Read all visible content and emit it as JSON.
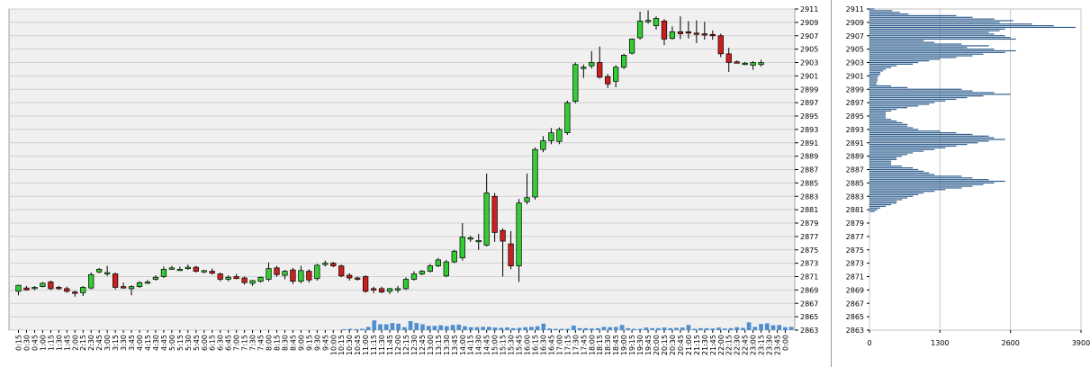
{
  "chart_data": [
    {
      "type": "candlestick",
      "title": "",
      "ylim": [
        2863,
        2911
      ],
      "y_ticks": [
        "2911",
        "2909",
        "2907",
        "2905",
        "2903",
        "2901",
        "2899",
        "2897",
        "2895",
        "2893",
        "2891",
        "2889",
        "2887",
        "2885",
        "2883",
        "2881",
        "2879",
        "2877",
        "2875",
        "2873",
        "2871",
        "2869",
        "2867",
        "2865",
        "2863"
      ],
      "x_tick_labels": [
        "0:15",
        "0:30",
        "0:45",
        "1:00",
        "1:15",
        "1:30",
        "1:45",
        "2:00",
        "2:15",
        "2:30",
        "2:45",
        "3:00",
        "3:15",
        "3:30",
        "3:45",
        "4:00",
        "4:15",
        "4:30",
        "4:45",
        "5:00",
        "5:15",
        "5:30",
        "5:45",
        "6:00",
        "6:15",
        "6:30",
        "6:45",
        "7:00",
        "7:15",
        "7:30",
        "7:45",
        "8:00",
        "8:15",
        "8:30",
        "8:45",
        "9:00",
        "9:15",
        "9:30",
        "9:45",
        "10:00",
        "10:15",
        "10:30",
        "10:45",
        "11:00",
        "11:15",
        "11:30",
        "11:45",
        "12:00",
        "12:15",
        "12:30",
        "12:45",
        "13:00",
        "13:15",
        "13:30",
        "13:45",
        "14:00",
        "14:15",
        "14:30",
        "14:45",
        "15:00",
        "15:15",
        "15:30",
        "15:45",
        "16:00",
        "16:15",
        "16:30",
        "16:45",
        "17:00",
        "17:15",
        "17:30",
        "17:45",
        "18:00",
        "18:15",
        "18:30",
        "18:45",
        "19:00",
        "19:15",
        "19:30",
        "19:45",
        "20:00",
        "20:15",
        "20:30",
        "20:45",
        "21:00",
        "21:15",
        "21:30",
        "21:45",
        "22:00",
        "22:15",
        "22:30",
        "22:45",
        "23:00",
        "23:15",
        "23:30",
        "23:45",
        "0:00"
      ],
      "colors": {
        "up": "#33cc33",
        "down": "#cc1f1f",
        "volume": "#4f8fcf",
        "grid": "#d0d0d0",
        "plot_bg": "#f0f0f0"
      },
      "candles": [
        {
          "t": "0:15",
          "o": 2868.8,
          "h": 2869.8,
          "l": 2868.2,
          "c": 2869.7
        },
        {
          "t": "0:30",
          "o": 2869.3,
          "h": 2869.6,
          "l": 2868.9,
          "c": 2869.0
        },
        {
          "t": "0:45",
          "o": 2869.2,
          "h": 2869.6,
          "l": 2869.0,
          "c": 2869.4
        },
        {
          "t": "1:00",
          "o": 2869.5,
          "h": 2870.2,
          "l": 2869.4,
          "c": 2870.0
        },
        {
          "t": "1:15",
          "o": 2870.2,
          "h": 2870.4,
          "l": 2869.0,
          "c": 2869.2
        },
        {
          "t": "1:30",
          "o": 2869.4,
          "h": 2869.6,
          "l": 2869.0,
          "c": 2869.3
        },
        {
          "t": "1:45",
          "o": 2869.2,
          "h": 2869.5,
          "l": 2868.6,
          "c": 2868.8
        },
        {
          "t": "2:00",
          "o": 2868.7,
          "h": 2868.9,
          "l": 2868.0,
          "c": 2868.6
        },
        {
          "t": "2:15",
          "o": 2868.6,
          "h": 2869.6,
          "l": 2868.1,
          "c": 2869.4
        },
        {
          "t": "2:30",
          "o": 2869.3,
          "h": 2871.6,
          "l": 2869.1,
          "c": 2871.3
        },
        {
          "t": "2:45",
          "o": 2871.7,
          "h": 2872.3,
          "l": 2871.5,
          "c": 2872.1
        },
        {
          "t": "3:00",
          "o": 2871.4,
          "h": 2872.6,
          "l": 2871.1,
          "c": 2871.6
        },
        {
          "t": "3:15",
          "o": 2871.4,
          "h": 2871.6,
          "l": 2869.1,
          "c": 2869.4
        },
        {
          "t": "3:30",
          "o": 2869.5,
          "h": 2870.1,
          "l": 2869.2,
          "c": 2869.3
        },
        {
          "t": "3:45",
          "o": 2869.2,
          "h": 2869.7,
          "l": 2868.2,
          "c": 2869.5
        },
        {
          "t": "4:00",
          "o": 2869.5,
          "h": 2870.3,
          "l": 2869.3,
          "c": 2870.1
        },
        {
          "t": "4:15",
          "o": 2870.1,
          "h": 2870.5,
          "l": 2869.9,
          "c": 2870.2
        },
        {
          "t": "4:30",
          "o": 2870.6,
          "h": 2871.2,
          "l": 2870.4,
          "c": 2870.9
        },
        {
          "t": "4:45",
          "o": 2871.0,
          "h": 2872.5,
          "l": 2870.8,
          "c": 2872.1
        },
        {
          "t": "5:00",
          "o": 2872.2,
          "h": 2872.6,
          "l": 2872.0,
          "c": 2872.3
        },
        {
          "t": "5:15",
          "o": 2872.1,
          "h": 2872.5,
          "l": 2871.9,
          "c": 2872.1
        },
        {
          "t": "5:30",
          "o": 2872.2,
          "h": 2872.8,
          "l": 2872.0,
          "c": 2872.4
        },
        {
          "t": "5:45",
          "o": 2872.4,
          "h": 2872.6,
          "l": 2871.6,
          "c": 2871.8
        },
        {
          "t": "6:00",
          "o": 2871.8,
          "h": 2872.0,
          "l": 2871.5,
          "c": 2871.9
        },
        {
          "t": "6:15",
          "o": 2871.8,
          "h": 2872.2,
          "l": 2871.3,
          "c": 2871.5
        },
        {
          "t": "6:30",
          "o": 2871.4,
          "h": 2871.6,
          "l": 2870.3,
          "c": 2870.6
        },
        {
          "t": "6:45",
          "o": 2870.6,
          "h": 2871.2,
          "l": 2870.3,
          "c": 2870.9
        },
        {
          "t": "7:00",
          "o": 2871.0,
          "h": 2871.4,
          "l": 2870.6,
          "c": 2870.7
        },
        {
          "t": "7:15",
          "o": 2870.8,
          "h": 2871.0,
          "l": 2869.8,
          "c": 2870.1
        },
        {
          "t": "7:30",
          "o": 2870.0,
          "h": 2870.5,
          "l": 2869.6,
          "c": 2870.4
        },
        {
          "t": "7:45",
          "o": 2870.3,
          "h": 2871.0,
          "l": 2870.1,
          "c": 2870.9
        },
        {
          "t": "8:00",
          "o": 2870.6,
          "h": 2873.1,
          "l": 2870.3,
          "c": 2872.2
        },
        {
          "t": "8:15",
          "o": 2872.3,
          "h": 2872.6,
          "l": 2871.0,
          "c": 2871.3
        },
        {
          "t": "8:30",
          "o": 2871.2,
          "h": 2872.0,
          "l": 2870.6,
          "c": 2871.8
        },
        {
          "t": "8:45",
          "o": 2872.0,
          "h": 2872.3,
          "l": 2869.9,
          "c": 2870.3
        },
        {
          "t": "9:00",
          "o": 2870.3,
          "h": 2872.6,
          "l": 2870.0,
          "c": 2871.9
        },
        {
          "t": "9:15",
          "o": 2871.8,
          "h": 2872.1,
          "l": 2870.1,
          "c": 2870.5
        },
        {
          "t": "9:30",
          "o": 2870.7,
          "h": 2872.9,
          "l": 2870.4,
          "c": 2872.7
        },
        {
          "t": "9:45",
          "o": 2872.8,
          "h": 2873.4,
          "l": 2872.5,
          "c": 2873.0
        },
        {
          "t": "10:00",
          "o": 2873.0,
          "h": 2873.2,
          "l": 2872.4,
          "c": 2872.6
        },
        {
          "t": "10:15",
          "o": 2872.6,
          "h": 2872.8,
          "l": 2870.9,
          "c": 2871.1
        },
        {
          "t": "10:30",
          "o": 2871.2,
          "h": 2871.5,
          "l": 2870.4,
          "c": 2870.8
        },
        {
          "t": "10:45",
          "o": 2870.8,
          "h": 2871.0,
          "l": 2870.4,
          "c": 2870.6
        },
        {
          "t": "11:00",
          "o": 2871.0,
          "h": 2871.2,
          "l": 2868.6,
          "c": 2868.8
        },
        {
          "t": "11:15",
          "o": 2869.2,
          "h": 2869.5,
          "l": 2868.5,
          "c": 2869.0
        },
        {
          "t": "11:30",
          "o": 2869.2,
          "h": 2869.5,
          "l": 2868.5,
          "c": 2868.7
        },
        {
          "t": "11:45",
          "o": 2868.8,
          "h": 2869.3,
          "l": 2868.4,
          "c": 2869.2
        },
        {
          "t": "12:00",
          "o": 2869.0,
          "h": 2869.6,
          "l": 2868.6,
          "c": 2869.2
        },
        {
          "t": "12:15",
          "o": 2869.2,
          "h": 2870.9,
          "l": 2869.0,
          "c": 2870.6
        },
        {
          "t": "12:30",
          "o": 2870.6,
          "h": 2871.8,
          "l": 2870.4,
          "c": 2871.4
        },
        {
          "t": "12:45",
          "o": 2871.4,
          "h": 2872.0,
          "l": 2871.2,
          "c": 2871.8
        },
        {
          "t": "13:00",
          "o": 2871.8,
          "h": 2872.9,
          "l": 2871.6,
          "c": 2872.6
        },
        {
          "t": "13:15",
          "o": 2872.6,
          "h": 2873.8,
          "l": 2872.4,
          "c": 2873.5
        },
        {
          "t": "13:30",
          "o": 2871.1,
          "h": 2873.5,
          "l": 2870.9,
          "c": 2873.2
        },
        {
          "t": "13:45",
          "o": 2873.2,
          "h": 2875.0,
          "l": 2873.0,
          "c": 2874.8
        },
        {
          "t": "14:00",
          "o": 2873.8,
          "h": 2879.0,
          "l": 2873.4,
          "c": 2876.9
        },
        {
          "t": "14:15",
          "o": 2876.6,
          "h": 2877.1,
          "l": 2876.2,
          "c": 2876.8
        },
        {
          "t": "14:30",
          "o": 2876.4,
          "h": 2877.4,
          "l": 2875.0,
          "c": 2876.4
        },
        {
          "t": "14:45",
          "o": 2875.7,
          "h": 2886.4,
          "l": 2875.5,
          "c": 2883.5
        },
        {
          "t": "15:00",
          "o": 2883.0,
          "h": 2883.5,
          "l": 2876.2,
          "c": 2877.6
        },
        {
          "t": "15:15",
          "o": 2877.9,
          "h": 2878.2,
          "l": 2871.0,
          "c": 2876.3
        },
        {
          "t": "15:30",
          "o": 2875.9,
          "h": 2877.8,
          "l": 2872.1,
          "c": 2872.6
        },
        {
          "t": "15:45",
          "o": 2872.6,
          "h": 2882.6,
          "l": 2870.2,
          "c": 2882.0
        },
        {
          "t": "16:00",
          "o": 2882.2,
          "h": 2886.4,
          "l": 2881.8,
          "c": 2882.8
        },
        {
          "t": "16:15",
          "o": 2882.9,
          "h": 2890.3,
          "l": 2882.5,
          "c": 2890.0
        },
        {
          "t": "16:30",
          "o": 2890.0,
          "h": 2892.0,
          "l": 2889.6,
          "c": 2891.3
        },
        {
          "t": "16:45",
          "o": 2891.3,
          "h": 2893.2,
          "l": 2890.8,
          "c": 2892.5
        },
        {
          "t": "17:00",
          "o": 2891.2,
          "h": 2893.3,
          "l": 2890.8,
          "c": 2893.0
        },
        {
          "t": "17:15",
          "o": 2892.5,
          "h": 2897.3,
          "l": 2892.2,
          "c": 2897.0
        },
        {
          "t": "17:30",
          "o": 2897.2,
          "h": 2903.0,
          "l": 2896.9,
          "c": 2902.7
        },
        {
          "t": "17:45",
          "o": 2902.3,
          "h": 2902.7,
          "l": 2900.7,
          "c": 2902.3
        },
        {
          "t": "18:00",
          "o": 2902.5,
          "h": 2904.7,
          "l": 2902.1,
          "c": 2903.0
        },
        {
          "t": "18:15",
          "o": 2903.0,
          "h": 2905.4,
          "l": 2900.6,
          "c": 2900.8
        },
        {
          "t": "18:30",
          "o": 2900.9,
          "h": 2901.3,
          "l": 2899.2,
          "c": 2899.8
        },
        {
          "t": "18:45",
          "o": 2900.2,
          "h": 2902.6,
          "l": 2899.3,
          "c": 2902.3
        },
        {
          "t": "19:00",
          "o": 2902.3,
          "h": 2904.3,
          "l": 2902.0,
          "c": 2904.1
        },
        {
          "t": "19:15",
          "o": 2904.4,
          "h": 2906.6,
          "l": 2904.2,
          "c": 2906.5
        },
        {
          "t": "19:30",
          "o": 2906.7,
          "h": 2910.6,
          "l": 2906.4,
          "c": 2909.2
        },
        {
          "t": "19:45",
          "o": 2909.2,
          "h": 2910.8,
          "l": 2908.8,
          "c": 2909.3
        },
        {
          "t": "20:00",
          "o": 2908.5,
          "h": 2909.9,
          "l": 2907.9,
          "c": 2909.6
        },
        {
          "t": "20:15",
          "o": 2909.2,
          "h": 2909.5,
          "l": 2905.6,
          "c": 2906.5
        },
        {
          "t": "20:30",
          "o": 2906.6,
          "h": 2908.4,
          "l": 2906.4,
          "c": 2907.6
        },
        {
          "t": "20:45",
          "o": 2907.6,
          "h": 2909.9,
          "l": 2906.5,
          "c": 2907.3
        },
        {
          "t": "21:00",
          "o": 2907.6,
          "h": 2909.2,
          "l": 2906.6,
          "c": 2907.5
        },
        {
          "t": "21:15",
          "o": 2907.4,
          "h": 2909.3,
          "l": 2905.9,
          "c": 2907.3
        },
        {
          "t": "21:30",
          "o": 2907.3,
          "h": 2909.1,
          "l": 2906.4,
          "c": 2907.1
        },
        {
          "t": "21:45",
          "o": 2907.2,
          "h": 2907.8,
          "l": 2906.4,
          "c": 2907.0
        },
        {
          "t": "22:00",
          "o": 2907.0,
          "h": 2907.3,
          "l": 2903.8,
          "c": 2904.3
        },
        {
          "t": "22:15",
          "o": 2904.3,
          "h": 2905.2,
          "l": 2901.6,
          "c": 2903.0
        },
        {
          "t": "22:30",
          "o": 2903.1,
          "h": 2903.3,
          "l": 2902.9,
          "c": 2903.0
        },
        {
          "t": "22:45",
          "o": 2902.8,
          "h": 2903.1,
          "l": 2902.6,
          "c": 2902.9
        },
        {
          "t": "23:00",
          "o": 2902.6,
          "h": 2903.2,
          "l": 2901.9,
          "c": 2903.0
        },
        {
          "t": "23:15",
          "o": 2902.7,
          "h": 2903.4,
          "l": 2902.4,
          "c": 2903.0
        }
      ],
      "volume": {
        "ymax": 100,
        "values": [
          0,
          0,
          0,
          0,
          0,
          0,
          0,
          0,
          0,
          0,
          0,
          0,
          0,
          0,
          0,
          0,
          0,
          0,
          0,
          0,
          0,
          0,
          0,
          0,
          0,
          0,
          0,
          0,
          0,
          0,
          0,
          0,
          0,
          0,
          0,
          0,
          0,
          0,
          0,
          0,
          0,
          0,
          0,
          0,
          0,
          0,
          0,
          0,
          0,
          0,
          0,
          0,
          0,
          0,
          0,
          3,
          4,
          3,
          4,
          10,
          30,
          18,
          18,
          22,
          20,
          9,
          28,
          22,
          18,
          13,
          13,
          15,
          12,
          16,
          17,
          12,
          9,
          9,
          10,
          10,
          8,
          7,
          8,
          6,
          7,
          9,
          10,
          12,
          20,
          5,
          4,
          4,
          4,
          14,
          6,
          6,
          5,
          6,
          10,
          9,
          10,
          16,
          6,
          4,
          4,
          8,
          6,
          6,
          8,
          6,
          7,
          8,
          16,
          4,
          6,
          6,
          5,
          8,
          5,
          6,
          9,
          7,
          24,
          10,
          19,
          21,
          15,
          16,
          9,
          10
        ]
      }
    },
    {
      "type": "bar",
      "orientation": "horizontal",
      "ylim": [
        2863,
        2911
      ],
      "x_ticks": [
        "0",
        "1300",
        "2600",
        "3900"
      ],
      "xlim": [
        0,
        3900
      ],
      "color": "#2f5f8f",
      "y_ticks": [
        "2911",
        "2909",
        "2907",
        "2905",
        "2903",
        "2901",
        "2899",
        "2897",
        "2895",
        "2893",
        "2891",
        "2889",
        "2887",
        "2885",
        "2883",
        "2881",
        "2879",
        "2877",
        "2875",
        "2873",
        "2871",
        "2869",
        "2867",
        "2865",
        "2863"
      ],
      "price_start": 2911,
      "price_step": -0.25,
      "values": [
        90,
        420,
        560,
        720,
        1600,
        1900,
        2300,
        2650,
        2400,
        3000,
        3400,
        3800,
        2500,
        2400,
        2200,
        2300,
        2500,
        2600,
        2700,
        1000,
        1200,
        1700,
        2200,
        1800,
        2300,
        2700,
        2500,
        2100,
        1900,
        1600,
        1300,
        1100,
        900,
        800,
        500,
        400,
        300,
        250,
        200,
        200,
        170,
        150,
        150,
        150,
        130,
        130,
        400,
        700,
        1700,
        1900,
        2300,
        2600,
        2100,
        1800,
        1600,
        1400,
        1200,
        1100,
        900,
        700,
        500,
        400,
        300,
        300,
        300,
        300,
        400,
        500,
        600,
        700,
        700,
        800,
        900,
        1300,
        1600,
        1900,
        2200,
        2300,
        2500,
        2200,
        2000,
        1800,
        1600,
        1400,
        1200,
        1000,
        800,
        700,
        600,
        500,
        500,
        400,
        400,
        400,
        600,
        800,
        900,
        1000,
        1100,
        1200,
        1700,
        1900,
        2200,
        2500,
        2300,
        2100,
        1900,
        1700,
        1400,
        1200,
        1000,
        900,
        800,
        700,
        600,
        500,
        500,
        400,
        300,
        200,
        150,
        100
      ]
    }
  ]
}
